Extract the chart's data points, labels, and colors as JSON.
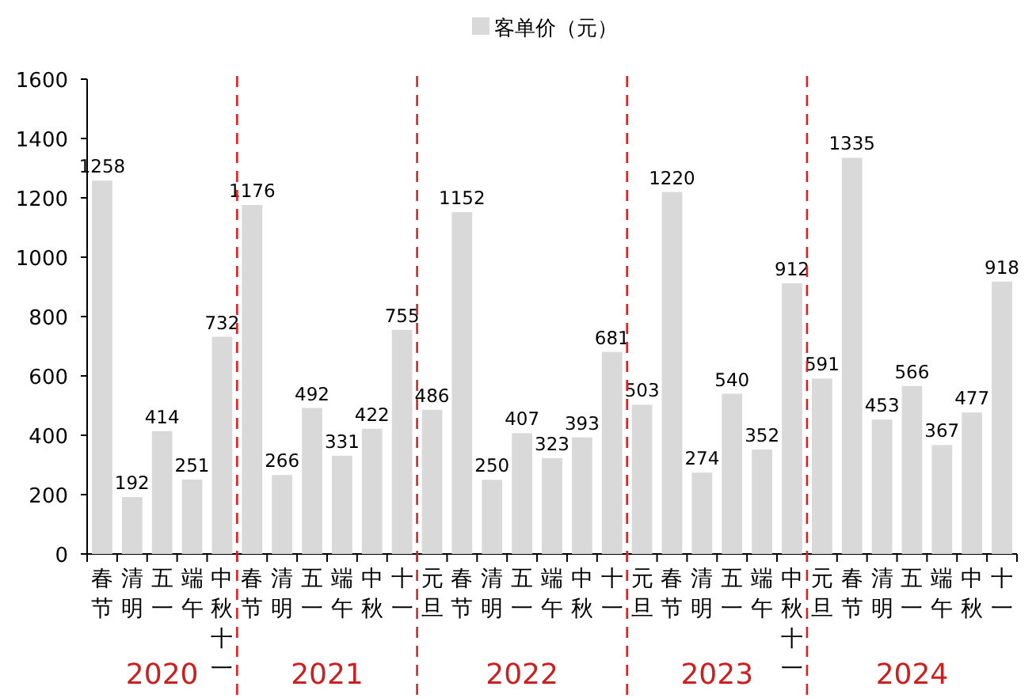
{
  "chart_data": {
    "type": "bar",
    "categories": [
      "春节",
      "清明",
      "五一",
      "端午",
      "中秋十一",
      "春节",
      "清明",
      "五一",
      "端午",
      "中秋",
      "十一",
      "元旦",
      "春节",
      "清明",
      "五一",
      "端午",
      "中秋",
      "十一",
      "元旦",
      "春节",
      "清明",
      "五一",
      "端午",
      "中秋十一",
      "元旦",
      "春节",
      "清明",
      "五一",
      "端午",
      "中秋",
      "十一"
    ],
    "series": [
      {
        "name": "客单价（元）",
        "color": "#d9d9d9",
        "values": [
          1258,
          192,
          414,
          251,
          732,
          1176,
          266,
          492,
          331,
          422,
          755,
          486,
          1152,
          250,
          407,
          323,
          393,
          681,
          503,
          1220,
          274,
          540,
          352,
          912,
          591,
          1335,
          453,
          566,
          367,
          477,
          918
        ]
      }
    ],
    "ylim": [
      0,
      1600
    ],
    "yticks": [
      0,
      200,
      400,
      600,
      800,
      1000,
      1200,
      1400,
      1600
    ],
    "data_labels": true,
    "legend": "top",
    "grid": false,
    "annotations": [
      "2020",
      "2021",
      "2022",
      "2023",
      "2024"
    ]
  }
}
